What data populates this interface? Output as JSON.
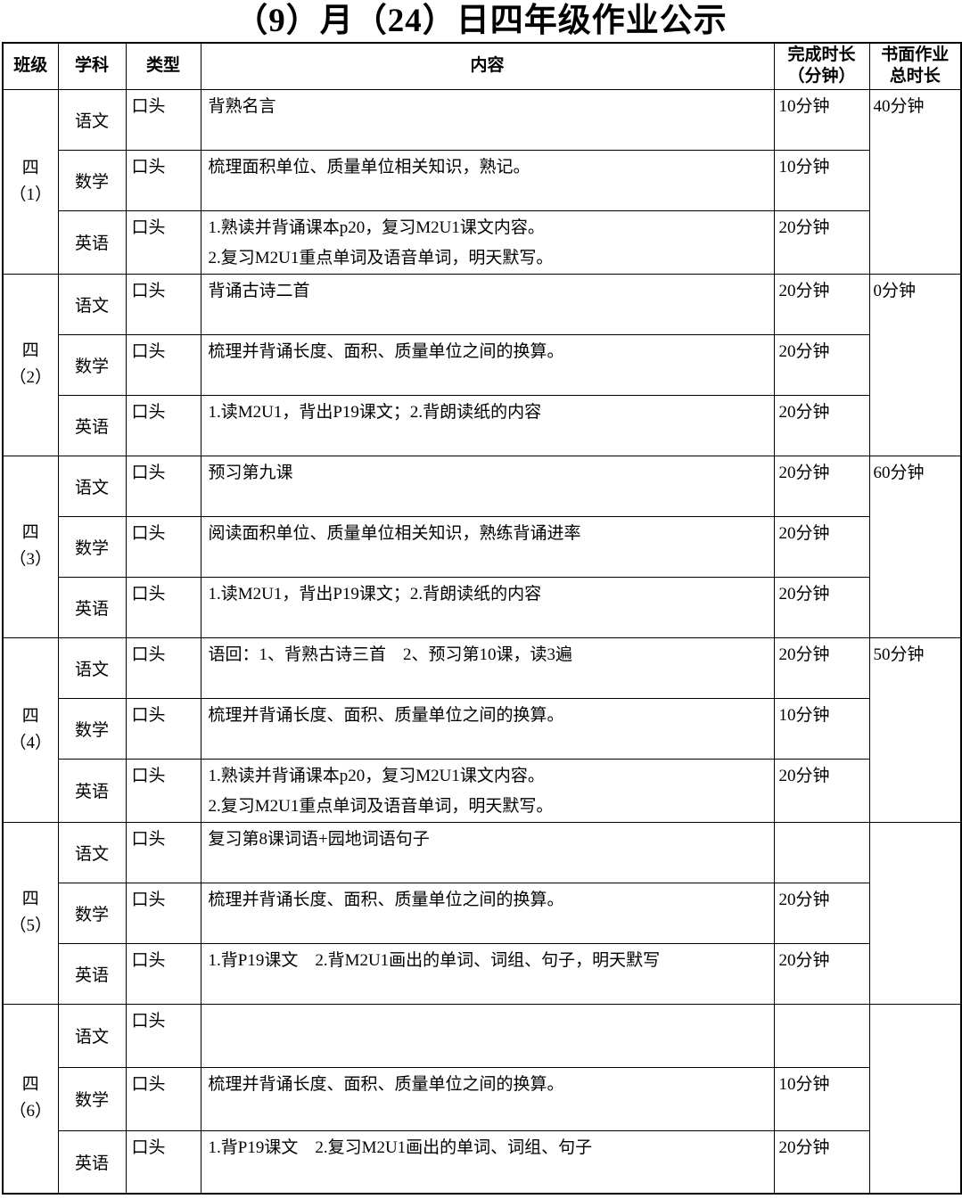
{
  "title": "（9）月（24）日四年级作业公示",
  "table": {
    "headers": {
      "class": "班级",
      "subject": "学科",
      "type": "类型",
      "content": "内容",
      "duration_line1": "完成时长",
      "duration_line2": "（分钟）",
      "total_line1": "书面作业",
      "total_line2": "总时长"
    },
    "blocks": [
      {
        "class_line1": "四",
        "class_line2": "（1）",
        "total": "40分钟",
        "rows": [
          {
            "subject": "语文",
            "type": "口头",
            "content": [
              "背熟名言"
            ],
            "duration": "10分钟"
          },
          {
            "subject": "数学",
            "type": "口头",
            "content": [
              "梳理面积单位、质量单位相关知识，熟记。"
            ],
            "duration": "10分钟"
          },
          {
            "subject": "英语",
            "type": "口头",
            "content": [
              "1.熟读并背诵课本p20，复习M2U1课文内容。",
              "2.复习M2U1重点单词及语音单词，明天默写。"
            ],
            "duration": "20分钟"
          }
        ]
      },
      {
        "class_line1": "四",
        "class_line2": "（2）",
        "total": "0分钟",
        "rows": [
          {
            "subject": "语文",
            "type": "口头",
            "content": [
              "背诵古诗二首"
            ],
            "duration": "20分钟"
          },
          {
            "subject": "数学",
            "type": "口头",
            "content": [
              "梳理并背诵长度、面积、质量单位之间的换算。"
            ],
            "duration": "20分钟"
          },
          {
            "subject": "英语",
            "type": "口头",
            "content": [
              "1.读M2U1，背出P19课文；2.背朗读纸的内容"
            ],
            "duration": "20分钟"
          }
        ]
      },
      {
        "class_line1": "四",
        "class_line2": "（3）",
        "total": "60分钟",
        "rows": [
          {
            "subject": "语文",
            "type": "口头",
            "content": [
              "预习第九课"
            ],
            "duration": "20分钟"
          },
          {
            "subject": "数学",
            "type": "口头",
            "content": [
              "阅读面积单位、质量单位相关知识，熟练背诵进率"
            ],
            "duration": "20分钟"
          },
          {
            "subject": "英语",
            "type": "口头",
            "content": [
              "1.读M2U1，背出P19课文；2.背朗读纸的内容"
            ],
            "duration": "20分钟"
          }
        ]
      },
      {
        "class_line1": "四",
        "class_line2": "（4）",
        "total": "50分钟",
        "rows": [
          {
            "subject": "语文",
            "type": "口头",
            "content": [
              "语回：1、背熟古诗三首　2、预习第10课，读3遍"
            ],
            "duration": "20分钟"
          },
          {
            "subject": "数学",
            "type": "口头",
            "content": [
              "梳理并背诵长度、面积、质量单位之间的换算。"
            ],
            "duration": "10分钟"
          },
          {
            "subject": "英语",
            "type": "口头",
            "content": [
              "1.熟读并背诵课本p20，复习M2U1课文内容。",
              "2.复习M2U1重点单词及语音单词，明天默写。"
            ],
            "duration": "20分钟"
          }
        ]
      },
      {
        "class_line1": "四",
        "class_line2": "（5）",
        "total": "",
        "rows": [
          {
            "subject": "语文",
            "type": "口头",
            "content": [
              "复习第8课词语+园地词语句子"
            ],
            "duration": ""
          },
          {
            "subject": "数学",
            "type": "口头",
            "content": [
              "梳理并背诵长度、面积、质量单位之间的换算。"
            ],
            "duration": "20分钟"
          },
          {
            "subject": "英语",
            "type": "口头",
            "content": [
              "1.背P19课文　2.背M2U1画出的单词、词组、句子，明天默写"
            ],
            "duration": "20分钟"
          }
        ]
      },
      {
        "class_line1": "四",
        "class_line2": "（6）",
        "total": "",
        "rows": [
          {
            "subject": "语文",
            "type": "口头",
            "content": [],
            "duration": ""
          },
          {
            "subject": "数学",
            "type": "口头",
            "content": [
              "梳理并背诵长度、面积、质量单位之间的换算。"
            ],
            "duration": "10分钟"
          },
          {
            "subject": "英语",
            "type": "口头",
            "content": [
              "1.背P19课文　2.复习M2U1画出的单词、词组、句子"
            ],
            "duration": "20分钟"
          }
        ]
      }
    ]
  }
}
